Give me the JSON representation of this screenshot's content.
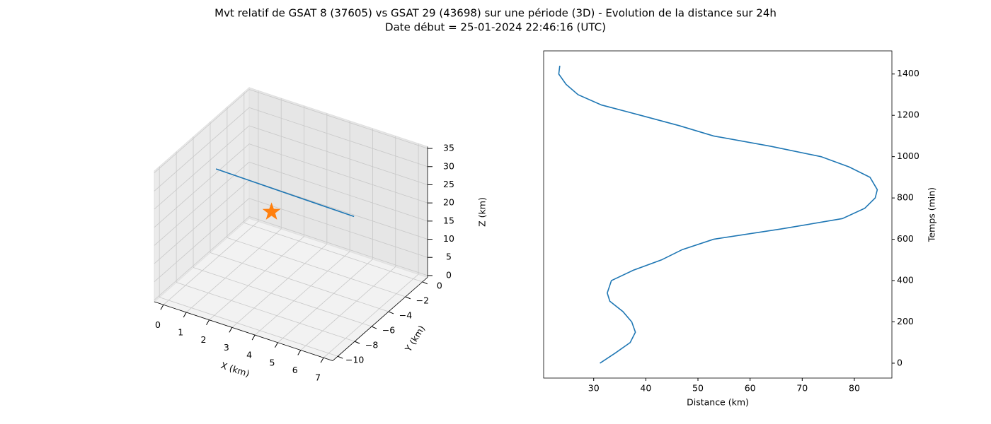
{
  "title": "Mvt relatif de GSAT 8 (37605) vs GSAT 29 (43698) sur une période (3D) - Evolution de la distance sur 24h",
  "subtitle": "Date début = 25-01-2024 22:46:16 (UTC)",
  "chart_data": [
    {
      "type": "line3d",
      "xlabel": "X (km)",
      "ylabel": "Y (km)",
      "zlabel": "Z (km)",
      "xlim": [
        -0.4,
        7.4
      ],
      "ylim": [
        -10.6,
        0.6
      ],
      "zlim": [
        -0.5,
        35.5
      ],
      "xticks": [
        0,
        1,
        2,
        3,
        4,
        5,
        6,
        7
      ],
      "yticks": [
        {
          "value": -10,
          "label": "−10"
        },
        {
          "value": -8,
          "label": "−8"
        },
        {
          "value": -6,
          "label": "−6"
        },
        {
          "value": -4,
          "label": "−4"
        },
        {
          "value": -2,
          "label": "−2"
        },
        0
      ],
      "zticks": [
        0,
        5,
        10,
        15,
        20,
        25,
        30,
        35
      ],
      "grid": true,
      "series": [
        {
          "type": "line",
          "color": "#1f77b4",
          "x": [
            0,
            1.75,
            3.5,
            5.25,
            7
          ],
          "y": [
            -4.4,
            -5.05,
            -5.7,
            -6.35,
            -7
          ],
          "z": [
            24.2,
            25.9,
            27.6,
            29.3,
            31
          ]
        },
        {
          "type": "marker",
          "marker": "star",
          "color": "#ff7f0e",
          "x": [
            0.8
          ],
          "y": [
            0
          ],
          "z": [
            5
          ]
        }
      ]
    },
    {
      "type": "line",
      "xlabel": "Distance (km)",
      "ylabel": "Temps (min)",
      "y_axis_side": "right",
      "xlim": [
        20.4,
        87.2
      ],
      "ylim": [
        -72,
        1512
      ],
      "xticks": [
        30,
        40,
        50,
        60,
        70,
        80
      ],
      "yticks": [
        0,
        200,
        400,
        600,
        800,
        1000,
        1200,
        1400
      ],
      "series": [
        {
          "color": "#1f77b4",
          "x": [
            31.2,
            34.2,
            37,
            38,
            37.3,
            35.6,
            33.1,
            32.6,
            33.4,
            37.6,
            43,
            47,
            53,
            66,
            77.7,
            82,
            84,
            84.4,
            83,
            79,
            73.6,
            64,
            53,
            46.4,
            39,
            31.5,
            27,
            24.7,
            23.3,
            23.5
          ],
          "y": [
            0,
            50,
            100,
            150,
            200,
            250,
            300,
            340,
            400,
            450,
            500,
            550,
            600,
            650,
            700,
            750,
            800,
            840,
            900,
            950,
            1000,
            1050,
            1100,
            1150,
            1200,
            1250,
            1300,
            1350,
            1400,
            1440
          ]
        }
      ]
    }
  ]
}
